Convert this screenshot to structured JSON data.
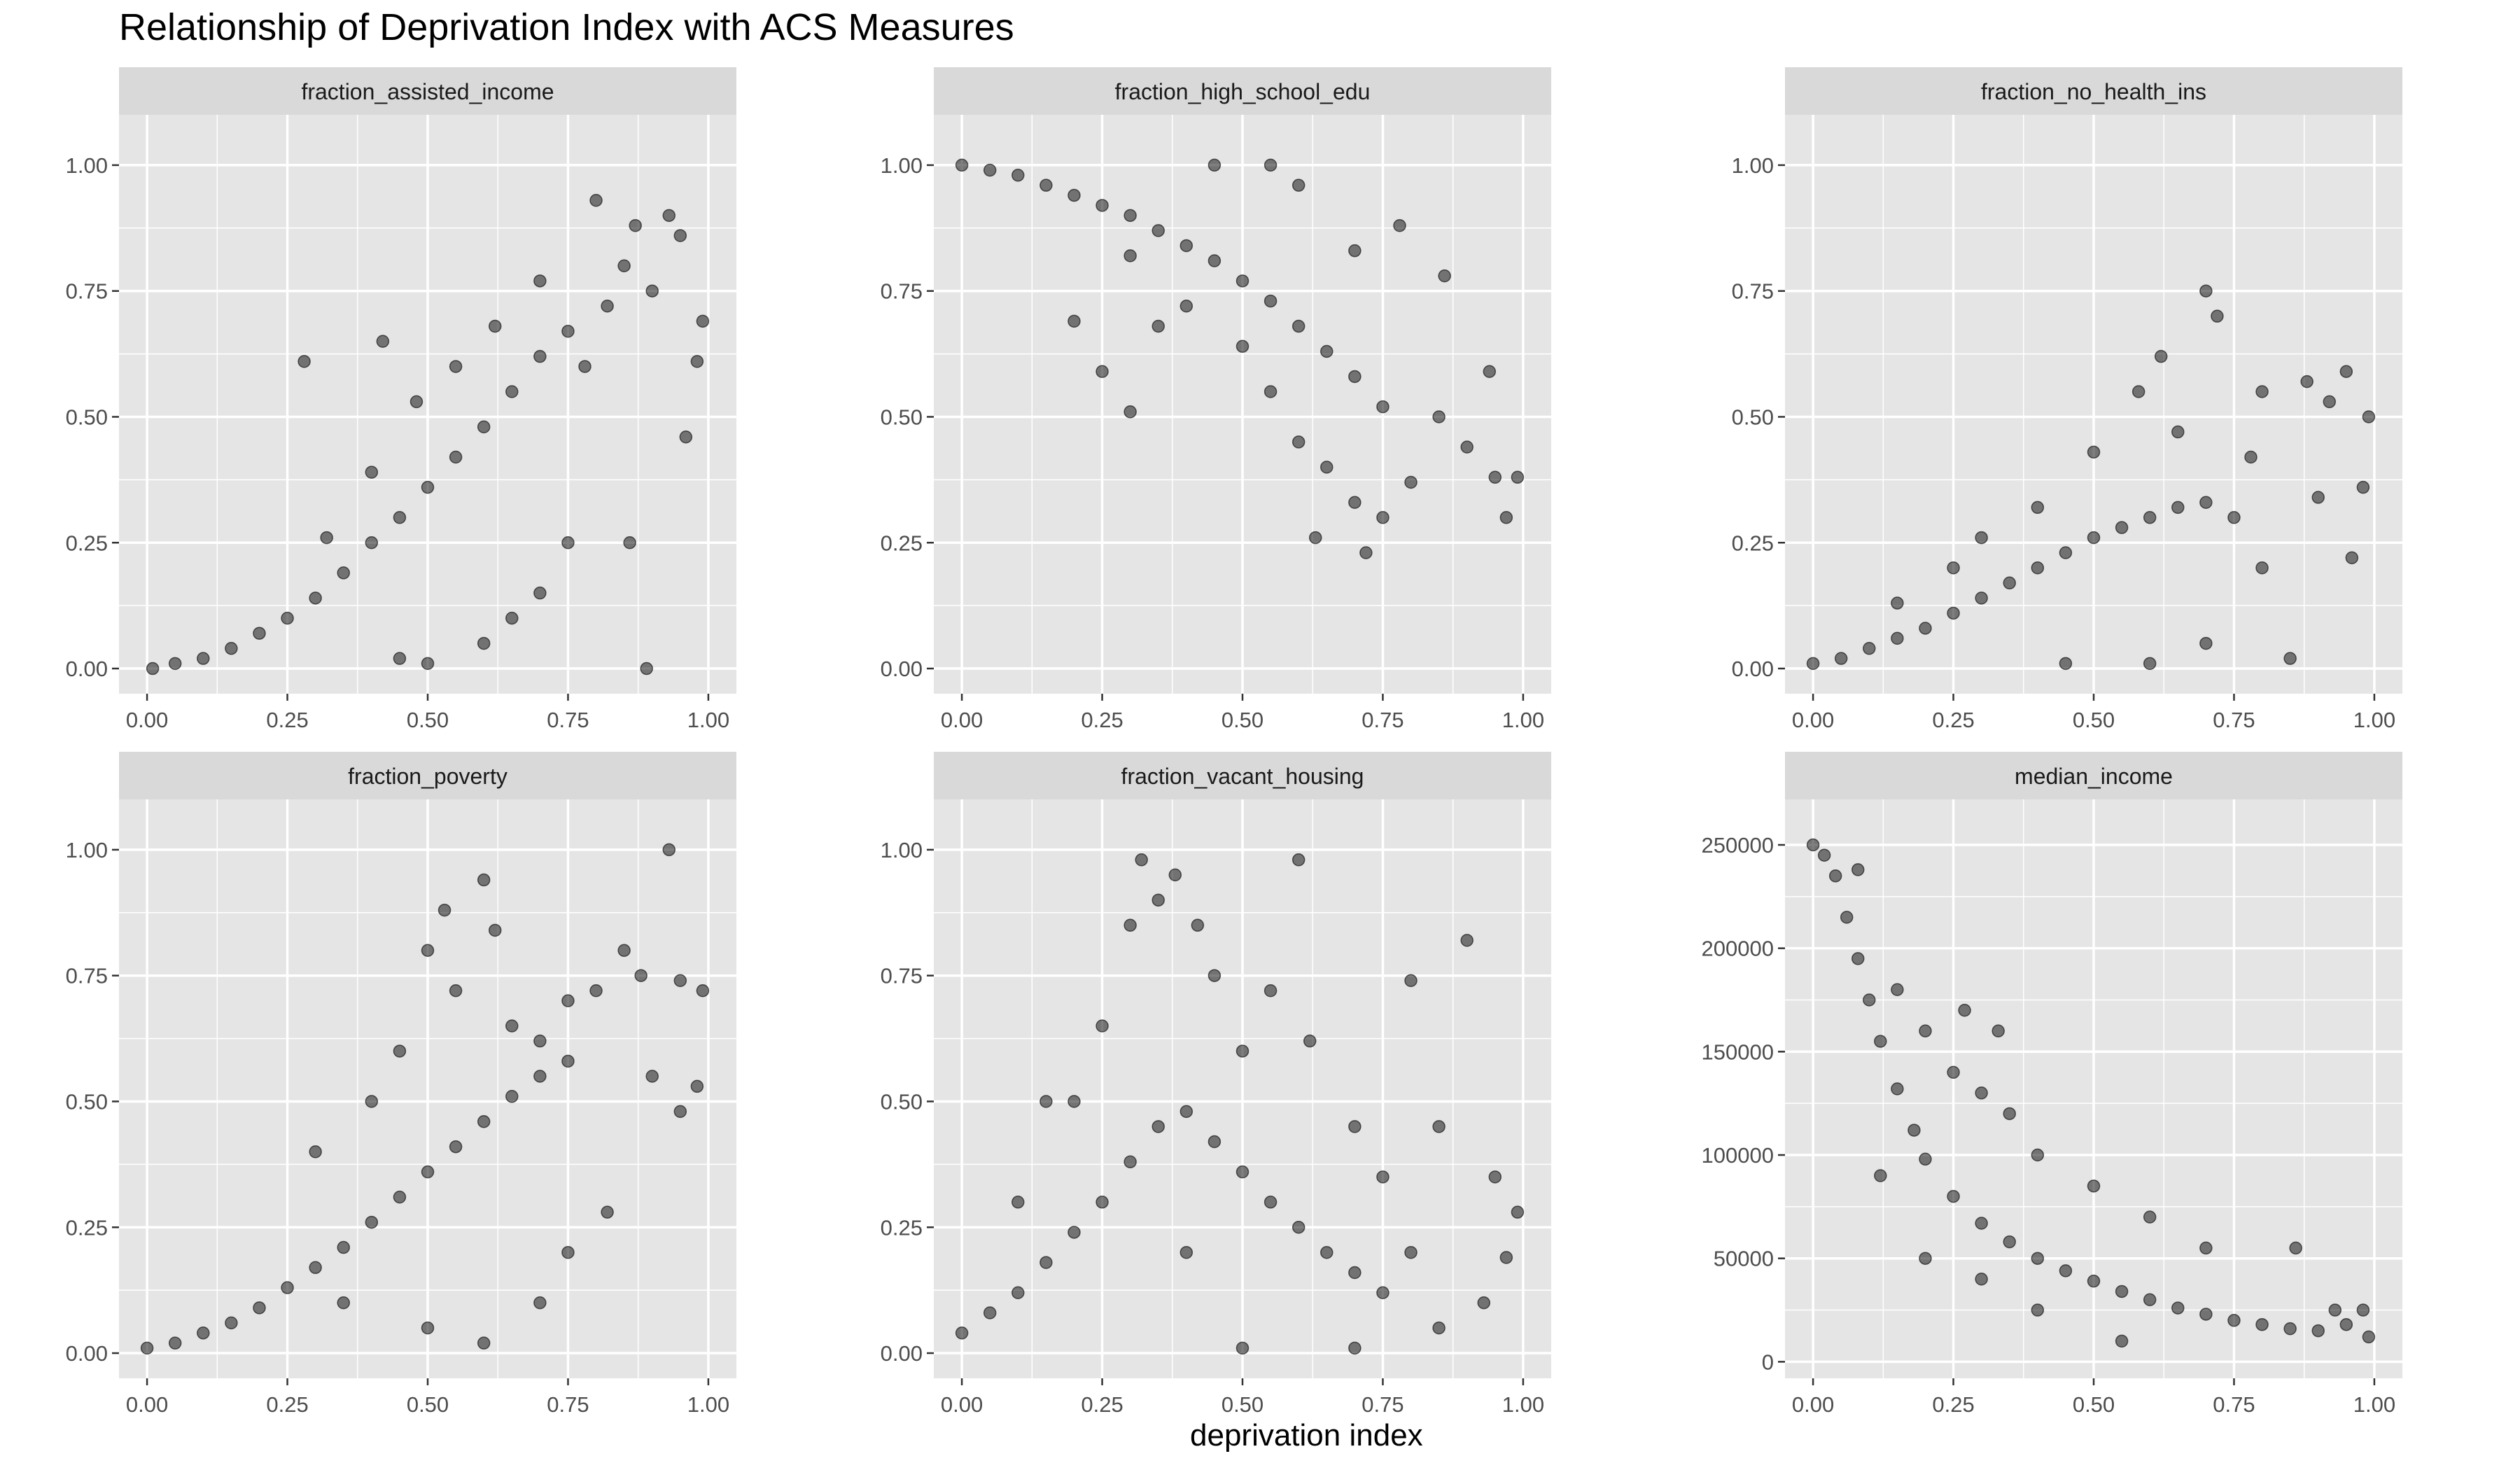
{
  "chart_data": {
    "type": "scatter",
    "title": "Relationship of Deprivation Index with ACS Measures",
    "xlabel": "deprivation index",
    "ylabel": "",
    "layout": "facet grid, 3 columns x 2 rows, free y scales",
    "grid": true,
    "colors": {
      "panel_bg": "#e5e5e5",
      "grid_line": "#ffffff",
      "strip_bg": "#d9d9d9",
      "point": "#000000",
      "tick_text": "#4d4d4d"
    },
    "x_ticks": [
      "0.00",
      "0.25",
      "0.50",
      "0.75",
      "1.00"
    ],
    "xlim": [
      -0.05,
      1.05
    ],
    "facets": [
      {
        "name": "fraction_assisted_income",
        "ylim": [
          -0.05,
          1.1
        ],
        "y_ticks": [
          0,
          0.25,
          0.5,
          0.75,
          1.0
        ],
        "y_tick_labels": [
          "0.00",
          "0.25",
          "0.50",
          "0.75",
          "1.00"
        ],
        "points": [
          [
            0.01,
            0.0
          ],
          [
            0.05,
            0.01
          ],
          [
            0.1,
            0.02
          ],
          [
            0.15,
            0.04
          ],
          [
            0.2,
            0.07
          ],
          [
            0.25,
            0.1
          ],
          [
            0.3,
            0.14
          ],
          [
            0.35,
            0.19
          ],
          [
            0.4,
            0.25
          ],
          [
            0.45,
            0.3
          ],
          [
            0.5,
            0.36
          ],
          [
            0.55,
            0.42
          ],
          [
            0.6,
            0.48
          ],
          [
            0.65,
            0.55
          ],
          [
            0.7,
            0.62
          ],
          [
            0.75,
            0.67
          ],
          [
            0.32,
            0.26
          ],
          [
            0.4,
            0.39
          ],
          [
            0.48,
            0.53
          ],
          [
            0.55,
            0.6
          ],
          [
            0.62,
            0.68
          ],
          [
            0.7,
            0.77
          ],
          [
            0.78,
            0.6
          ],
          [
            0.82,
            0.72
          ],
          [
            0.85,
            0.8
          ],
          [
            0.87,
            0.88
          ],
          [
            0.9,
            0.75
          ],
          [
            0.93,
            0.9
          ],
          [
            0.95,
            0.86
          ],
          [
            0.99,
            0.69
          ],
          [
            0.98,
            0.61
          ],
          [
            0.96,
            0.46
          ],
          [
            0.89,
            0.0
          ],
          [
            0.45,
            0.02
          ],
          [
            0.6,
            0.05
          ],
          [
            0.7,
            0.15
          ],
          [
            0.75,
            0.25
          ],
          [
            0.86,
            0.25
          ],
          [
            0.8,
            0.93
          ],
          [
            0.28,
            0.61
          ],
          [
            0.42,
            0.65
          ],
          [
            0.5,
            0.01
          ],
          [
            0.65,
            0.1
          ]
        ]
      },
      {
        "name": "fraction_high_school_edu",
        "ylim": [
          -0.05,
          1.1
        ],
        "y_ticks": [
          0,
          0.25,
          0.5,
          0.75,
          1.0
        ],
        "y_tick_labels": [
          "0.00",
          "0.25",
          "0.50",
          "0.75",
          "1.00"
        ],
        "points": [
          [
            0.0,
            1.0
          ],
          [
            0.05,
            0.99
          ],
          [
            0.1,
            0.98
          ],
          [
            0.15,
            0.96
          ],
          [
            0.2,
            0.94
          ],
          [
            0.25,
            0.92
          ],
          [
            0.3,
            0.9
          ],
          [
            0.35,
            0.87
          ],
          [
            0.4,
            0.84
          ],
          [
            0.45,
            0.81
          ],
          [
            0.5,
            0.77
          ],
          [
            0.55,
            0.73
          ],
          [
            0.6,
            0.68
          ],
          [
            0.65,
            0.63
          ],
          [
            0.7,
            0.58
          ],
          [
            0.75,
            0.52
          ],
          [
            0.3,
            0.82
          ],
          [
            0.4,
            0.72
          ],
          [
            0.5,
            0.64
          ],
          [
            0.55,
            0.55
          ],
          [
            0.6,
            0.45
          ],
          [
            0.65,
            0.4
          ],
          [
            0.7,
            0.33
          ],
          [
            0.75,
            0.3
          ],
          [
            0.8,
            0.37
          ],
          [
            0.85,
            0.5
          ],
          [
            0.9,
            0.44
          ],
          [
            0.95,
            0.38
          ],
          [
            0.99,
            0.38
          ],
          [
            0.97,
            0.3
          ],
          [
            0.94,
            0.59
          ],
          [
            0.2,
            0.69
          ],
          [
            0.35,
            0.68
          ],
          [
            0.25,
            0.59
          ],
          [
            0.3,
            0.51
          ],
          [
            0.45,
            1.0
          ],
          [
            0.55,
            1.0
          ],
          [
            0.6,
            0.96
          ],
          [
            0.7,
            0.83
          ],
          [
            0.78,
            0.88
          ],
          [
            0.63,
            0.26
          ],
          [
            0.72,
            0.23
          ],
          [
            0.86,
            0.78
          ]
        ]
      },
      {
        "name": "fraction_no_health_ins",
        "ylim": [
          -0.05,
          1.1
        ],
        "y_ticks": [
          0,
          0.25,
          0.5,
          0.75,
          1.0
        ],
        "y_tick_labels": [
          "0.00",
          "0.25",
          "0.50",
          "0.75",
          "1.00"
        ],
        "points": [
          [
            0.0,
            0.01
          ],
          [
            0.05,
            0.02
          ],
          [
            0.1,
            0.04
          ],
          [
            0.15,
            0.06
          ],
          [
            0.2,
            0.08
          ],
          [
            0.25,
            0.11
          ],
          [
            0.3,
            0.14
          ],
          [
            0.35,
            0.17
          ],
          [
            0.4,
            0.2
          ],
          [
            0.45,
            0.23
          ],
          [
            0.5,
            0.26
          ],
          [
            0.55,
            0.28
          ],
          [
            0.6,
            0.3
          ],
          [
            0.65,
            0.32
          ],
          [
            0.7,
            0.33
          ],
          [
            0.75,
            0.3
          ],
          [
            0.4,
            0.32
          ],
          [
            0.5,
            0.43
          ],
          [
            0.58,
            0.55
          ],
          [
            0.62,
            0.62
          ],
          [
            0.7,
            0.75
          ],
          [
            0.72,
            0.7
          ],
          [
            0.8,
            0.55
          ],
          [
            0.88,
            0.57
          ],
          [
            0.92,
            0.53
          ],
          [
            0.95,
            0.59
          ],
          [
            0.99,
            0.5
          ],
          [
            0.98,
            0.36
          ],
          [
            0.96,
            0.22
          ],
          [
            0.85,
            0.02
          ],
          [
            0.6,
            0.01
          ],
          [
            0.7,
            0.05
          ],
          [
            0.8,
            0.2
          ],
          [
            0.9,
            0.34
          ],
          [
            0.15,
            0.13
          ],
          [
            0.25,
            0.2
          ],
          [
            0.3,
            0.26
          ],
          [
            0.45,
            0.01
          ],
          [
            0.65,
            0.47
          ],
          [
            0.78,
            0.42
          ]
        ]
      },
      {
        "name": "fraction_poverty",
        "ylim": [
          -0.05,
          1.1
        ],
        "y_ticks": [
          0,
          0.25,
          0.5,
          0.75,
          1.0
        ],
        "y_tick_labels": [
          "0.00",
          "0.25",
          "0.50",
          "0.75",
          "1.00"
        ],
        "points": [
          [
            0.0,
            0.01
          ],
          [
            0.05,
            0.02
          ],
          [
            0.1,
            0.04
          ],
          [
            0.15,
            0.06
          ],
          [
            0.2,
            0.09
          ],
          [
            0.25,
            0.13
          ],
          [
            0.3,
            0.17
          ],
          [
            0.35,
            0.21
          ],
          [
            0.4,
            0.26
          ],
          [
            0.45,
            0.31
          ],
          [
            0.5,
            0.36
          ],
          [
            0.55,
            0.41
          ],
          [
            0.6,
            0.46
          ],
          [
            0.65,
            0.51
          ],
          [
            0.7,
            0.55
          ],
          [
            0.75,
            0.58
          ],
          [
            0.45,
            0.6
          ],
          [
            0.5,
            0.8
          ],
          [
            0.53,
            0.88
          ],
          [
            0.55,
            0.72
          ],
          [
            0.6,
            0.94
          ],
          [
            0.62,
            0.84
          ],
          [
            0.65,
            0.65
          ],
          [
            0.7,
            0.62
          ],
          [
            0.75,
            0.7
          ],
          [
            0.8,
            0.72
          ],
          [
            0.85,
            0.8
          ],
          [
            0.88,
            0.75
          ],
          [
            0.93,
            1.0
          ],
          [
            0.95,
            0.74
          ],
          [
            0.99,
            0.72
          ],
          [
            0.98,
            0.53
          ],
          [
            0.95,
            0.48
          ],
          [
            0.9,
            0.55
          ],
          [
            0.6,
            0.02
          ],
          [
            0.7,
            0.1
          ],
          [
            0.75,
            0.2
          ],
          [
            0.82,
            0.28
          ],
          [
            0.3,
            0.4
          ],
          [
            0.4,
            0.5
          ],
          [
            0.35,
            0.1
          ],
          [
            0.5,
            0.05
          ]
        ]
      },
      {
        "name": "fraction_vacant_housing",
        "ylim": [
          -0.05,
          1.1
        ],
        "y_ticks": [
          0,
          0.25,
          0.5,
          0.75,
          1.0
        ],
        "y_tick_labels": [
          "0.00",
          "0.25",
          "0.50",
          "0.75",
          "1.00"
        ],
        "points": [
          [
            0.0,
            0.04
          ],
          [
            0.05,
            0.08
          ],
          [
            0.1,
            0.12
          ],
          [
            0.15,
            0.18
          ],
          [
            0.2,
            0.24
          ],
          [
            0.25,
            0.3
          ],
          [
            0.3,
            0.38
          ],
          [
            0.35,
            0.45
          ],
          [
            0.4,
            0.48
          ],
          [
            0.45,
            0.42
          ],
          [
            0.5,
            0.36
          ],
          [
            0.55,
            0.3
          ],
          [
            0.6,
            0.25
          ],
          [
            0.65,
            0.2
          ],
          [
            0.7,
            0.16
          ],
          [
            0.75,
            0.12
          ],
          [
            0.2,
            0.5
          ],
          [
            0.25,
            0.65
          ],
          [
            0.3,
            0.85
          ],
          [
            0.32,
            0.98
          ],
          [
            0.35,
            0.9
          ],
          [
            0.38,
            0.95
          ],
          [
            0.42,
            0.85
          ],
          [
            0.45,
            0.75
          ],
          [
            0.5,
            0.6
          ],
          [
            0.55,
            0.72
          ],
          [
            0.6,
            0.98
          ],
          [
            0.62,
            0.62
          ],
          [
            0.7,
            0.45
          ],
          [
            0.75,
            0.35
          ],
          [
            0.8,
            0.74
          ],
          [
            0.85,
            0.45
          ],
          [
            0.9,
            0.82
          ],
          [
            0.95,
            0.35
          ],
          [
            0.99,
            0.28
          ],
          [
            0.97,
            0.19
          ],
          [
            0.93,
            0.1
          ],
          [
            0.85,
            0.05
          ],
          [
            0.1,
            0.3
          ],
          [
            0.15,
            0.5
          ],
          [
            0.5,
            0.01
          ],
          [
            0.7,
            0.01
          ],
          [
            0.8,
            0.2
          ],
          [
            0.4,
            0.2
          ]
        ]
      },
      {
        "name": "median_income",
        "ylim": [
          -8000,
          272000
        ],
        "y_ticks": [
          0,
          50000,
          100000,
          150000,
          200000,
          250000
        ],
        "y_tick_labels": [
          "0",
          "50000",
          "100000",
          "150000",
          "200000",
          "250000"
        ],
        "points": [
          [
            0.0,
            250000
          ],
          [
            0.02,
            245000
          ],
          [
            0.04,
            235000
          ],
          [
            0.06,
            215000
          ],
          [
            0.08,
            195000
          ],
          [
            0.1,
            175000
          ],
          [
            0.12,
            155000
          ],
          [
            0.15,
            132000
          ],
          [
            0.18,
            112000
          ],
          [
            0.2,
            98000
          ],
          [
            0.25,
            80000
          ],
          [
            0.3,
            67000
          ],
          [
            0.35,
            58000
          ],
          [
            0.4,
            50000
          ],
          [
            0.45,
            44000
          ],
          [
            0.5,
            39000
          ],
          [
            0.55,
            34000
          ],
          [
            0.6,
            30000
          ],
          [
            0.65,
            26000
          ],
          [
            0.7,
            23000
          ],
          [
            0.75,
            20000
          ],
          [
            0.8,
            18000
          ],
          [
            0.85,
            16000
          ],
          [
            0.9,
            15000
          ],
          [
            0.95,
            18000
          ],
          [
            0.99,
            12000
          ],
          [
            0.98,
            25000
          ],
          [
            0.93,
            25000
          ],
          [
            0.86,
            55000
          ],
          [
            0.15,
            180000
          ],
          [
            0.2,
            160000
          ],
          [
            0.25,
            140000
          ],
          [
            0.3,
            130000
          ],
          [
            0.35,
            120000
          ],
          [
            0.4,
            100000
          ],
          [
            0.5,
            85000
          ],
          [
            0.6,
            70000
          ],
          [
            0.7,
            55000
          ],
          [
            0.12,
            90000
          ],
          [
            0.2,
            50000
          ],
          [
            0.3,
            40000
          ],
          [
            0.4,
            25000
          ],
          [
            0.55,
            10000
          ],
          [
            0.08,
            238000
          ],
          [
            0.27,
            170000
          ],
          [
            0.33,
            160000
          ]
        ]
      }
    ]
  }
}
